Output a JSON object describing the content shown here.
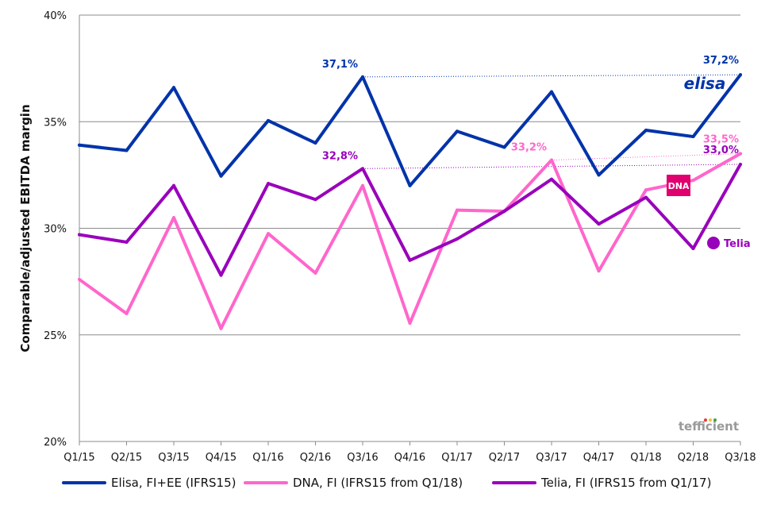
{
  "chart_data": {
    "type": "line",
    "title": "",
    "xlabel": "",
    "ylabel": "Comparable/adjusted EBITDA margin",
    "ylim": [
      20,
      40
    ],
    "yticks": [
      20,
      25,
      30,
      35,
      40
    ],
    "ytick_labels": [
      "20%",
      "25%",
      "30%",
      "35%",
      "40%"
    ],
    "grid": "horizontal",
    "legend_position": "bottom",
    "categories": [
      "Q1/15",
      "Q2/15",
      "Q3/15",
      "Q4/15",
      "Q1/16",
      "Q2/16",
      "Q3/16",
      "Q4/16",
      "Q1/17",
      "Q2/17",
      "Q3/17",
      "Q4/17",
      "Q1/18",
      "Q2/18",
      "Q3/18"
    ],
    "series": [
      {
        "name": "Elisa, FI+EE (IFRS15)",
        "color": "#0033aa",
        "values": [
          33.9,
          33.65,
          36.6,
          32.45,
          35.05,
          34.0,
          37.1,
          32.0,
          34.55,
          33.8,
          36.4,
          32.5,
          34.6,
          34.3,
          37.2
        ]
      },
      {
        "name": "DNA, FI (IFRS15 from Q1/18)",
        "color": "#ff66cc",
        "values": [
          27.6,
          26.0,
          30.5,
          25.3,
          29.75,
          27.9,
          32.0,
          25.55,
          30.85,
          30.8,
          33.2,
          28.0,
          31.8,
          32.25,
          33.5
        ]
      },
      {
        "name": "Telia, FI (IFRS15 from Q1/17)",
        "color": "#9900bb",
        "values": [
          29.7,
          29.35,
          32.0,
          27.8,
          32.1,
          31.35,
          32.8,
          28.5,
          29.5,
          30.8,
          32.3,
          30.2,
          31.45,
          29.05,
          33.0
        ]
      }
    ],
    "annotations": [
      {
        "text": "37,1%",
        "series": 0,
        "category": "Q3/16",
        "color": "#0033aa"
      },
      {
        "text": "37,2%",
        "series": 0,
        "category": "Q3/18",
        "color": "#0033aa"
      },
      {
        "text": "32,8%",
        "series": 2,
        "category": "Q3/16",
        "color": "#9900bb"
      },
      {
        "text": "33,0%",
        "series": 2,
        "category": "Q3/18",
        "color": "#9900bb"
      },
      {
        "text": "33,2%",
        "series": 1,
        "category": "Q3/17",
        "color": "#ff66cc"
      },
      {
        "text": "33,5%",
        "series": 1,
        "category": "Q3/18",
        "color": "#ff66cc"
      }
    ],
    "brand_labels": {
      "elisa": "elisa",
      "dna": "DNA",
      "telia": "Telia",
      "tefficient": "tefficient"
    }
  }
}
